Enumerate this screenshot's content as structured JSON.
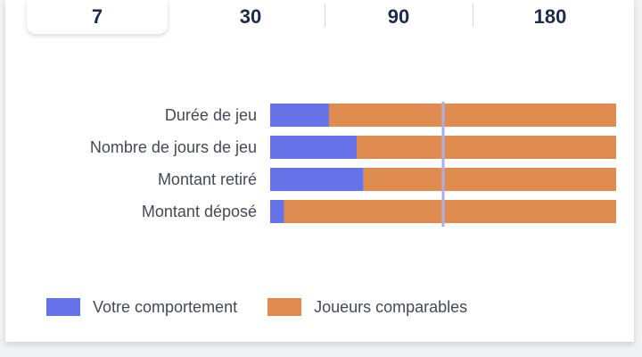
{
  "periods": {
    "items": [
      {
        "label": "7",
        "active": true
      },
      {
        "label": "30",
        "active": false
      },
      {
        "label": "90",
        "active": false
      },
      {
        "label": "180",
        "active": false
      }
    ]
  },
  "legend": {
    "you_label": "Votre comportement",
    "peers_label": "Joueurs comparables"
  },
  "colors": {
    "you": "#6672e8",
    "peers": "#e08c50",
    "reference_line": "#a9aeea"
  },
  "chart_data": {
    "type": "bar",
    "orientation": "horizontal",
    "stacked": true,
    "categories": [
      "Durée de jeu",
      "Nombre de jours de jeu",
      "Montant retiré",
      "Montant déposé"
    ],
    "series": [
      {
        "name": "Votre comportement",
        "values": [
          17,
          25,
          27,
          4
        ]
      },
      {
        "name": "Joueurs comparables",
        "values": [
          83,
          75,
          73,
          96
        ]
      }
    ],
    "xlim": [
      0,
      100
    ],
    "reference_line": 50,
    "legend_position": "bottom"
  }
}
